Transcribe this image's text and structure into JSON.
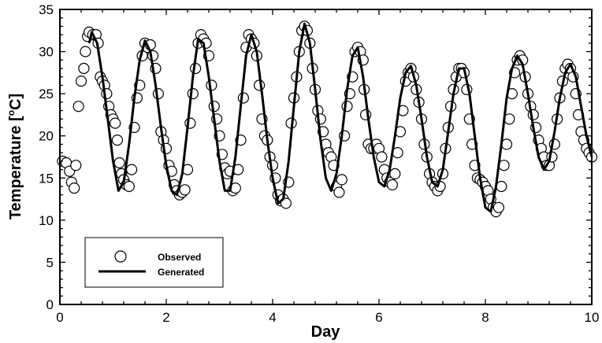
{
  "chart_data": {
    "type": "scatter",
    "xlabel": "Day",
    "ylabel": "Temperature [",
    "ylabel_unit_sup": "o",
    "ylabel_unit_tail": "C]",
    "xlim": [
      0,
      10
    ],
    "ylim": [
      0,
      35
    ],
    "xticks": [
      0,
      2,
      4,
      6,
      8,
      10
    ],
    "yticks": [
      0,
      5,
      10,
      15,
      20,
      25,
      30,
      35
    ],
    "xtick_labels": [
      "0",
      "2",
      "4",
      "6",
      "8",
      "10"
    ],
    "ytick_labels": [
      "0",
      "5",
      "10",
      "15",
      "20",
      "25",
      "30",
      "35"
    ],
    "grid": false,
    "legend_position": "bottom-left",
    "series": [
      {
        "name": "Observed",
        "marker": "open-circle",
        "points": [
          [
            0.05,
            17.0
          ],
          [
            0.12,
            16.8
          ],
          [
            0.18,
            15.8
          ],
          [
            0.22,
            14.5
          ],
          [
            0.27,
            13.8
          ],
          [
            0.3,
            16.5
          ],
          [
            0.35,
            23.5
          ],
          [
            0.4,
            26.5
          ],
          [
            0.45,
            28
          ],
          [
            0.48,
            30
          ],
          [
            0.52,
            31.8
          ],
          [
            0.55,
            32.3
          ],
          [
            0.62,
            32.0
          ],
          [
            0.68,
            32.0
          ],
          [
            0.72,
            31.0
          ],
          [
            0.76,
            27.0
          ],
          [
            0.8,
            26.5
          ],
          [
            0.84,
            26.0
          ],
          [
            0.88,
            25.0
          ],
          [
            0.92,
            23.5
          ],
          [
            0.96,
            22.5
          ],
          [
            1.0,
            22.0
          ],
          [
            1.04,
            21.5
          ],
          [
            1.08,
            19.5
          ],
          [
            1.12,
            16.8
          ],
          [
            1.16,
            15.5
          ],
          [
            1.2,
            14.8
          ],
          [
            1.25,
            14.2
          ],
          [
            1.3,
            14.0
          ],
          [
            1.35,
            16.0
          ],
          [
            1.4,
            21.0
          ],
          [
            1.45,
            24.5
          ],
          [
            1.5,
            26.0
          ],
          [
            1.55,
            29.5
          ],
          [
            1.6,
            31.0
          ],
          [
            1.65,
            30.5
          ],
          [
            1.7,
            30.8
          ],
          [
            1.75,
            29.5
          ],
          [
            1.8,
            28.0
          ],
          [
            1.85,
            25.0
          ],
          [
            1.9,
            20.5
          ],
          [
            1.95,
            19.5
          ],
          [
            2.0,
            18.5
          ],
          [
            2.05,
            16.5
          ],
          [
            2.1,
            15.8
          ],
          [
            2.15,
            14.2
          ],
          [
            2.2,
            13.5
          ],
          [
            2.25,
            13.0
          ],
          [
            2.3,
            13.3
          ],
          [
            2.35,
            13.6
          ],
          [
            2.4,
            16.0
          ],
          [
            2.45,
            21.5
          ],
          [
            2.5,
            25.0
          ],
          [
            2.55,
            28.0
          ],
          [
            2.6,
            31.0
          ],
          [
            2.65,
            32.0
          ],
          [
            2.7,
            31.5
          ],
          [
            2.75,
            31.0
          ],
          [
            2.8,
            29.5
          ],
          [
            2.85,
            26.0
          ],
          [
            2.9,
            23.5
          ],
          [
            2.95,
            22.0
          ],
          [
            3.0,
            20.0
          ],
          [
            3.05,
            17.8
          ],
          [
            3.1,
            16.2
          ],
          [
            3.15,
            15.5
          ],
          [
            3.2,
            15.8
          ],
          [
            3.25,
            13.5
          ],
          [
            3.3,
            13.8
          ],
          [
            3.35,
            16.0
          ],
          [
            3.4,
            19.5
          ],
          [
            3.45,
            24.5
          ],
          [
            3.5,
            30.5
          ],
          [
            3.55,
            32.0
          ],
          [
            3.6,
            31.5
          ],
          [
            3.65,
            31.0
          ],
          [
            3.7,
            29.5
          ],
          [
            3.75,
            26.0
          ],
          [
            3.8,
            22.0
          ],
          [
            3.85,
            20.0
          ],
          [
            3.9,
            19.5
          ],
          [
            3.95,
            17.5
          ],
          [
            4.0,
            16.5
          ],
          [
            4.05,
            15.0
          ],
          [
            4.1,
            13.0
          ],
          [
            4.15,
            12.3
          ],
          [
            4.2,
            12.5
          ],
          [
            4.25,
            12.0
          ],
          [
            4.3,
            14.5
          ],
          [
            4.35,
            21.5
          ],
          [
            4.4,
            24.5
          ],
          [
            4.45,
            27.0
          ],
          [
            4.5,
            30.0
          ],
          [
            4.55,
            32.5
          ],
          [
            4.6,
            33.0
          ],
          [
            4.65,
            32.5
          ],
          [
            4.7,
            31.0
          ],
          [
            4.75,
            28.0
          ],
          [
            4.8,
            25.5
          ],
          [
            4.85,
            23.0
          ],
          [
            4.9,
            22.0
          ],
          [
            4.95,
            20.5
          ],
          [
            5.0,
            19.0
          ],
          [
            5.05,
            18.0
          ],
          [
            5.1,
            17.5
          ],
          [
            5.15,
            16.5
          ],
          [
            5.2,
            14.0
          ],
          [
            5.25,
            13.3
          ],
          [
            5.3,
            14.8
          ],
          [
            5.35,
            20.0
          ],
          [
            5.4,
            23.5
          ],
          [
            5.45,
            25.0
          ],
          [
            5.5,
            27.0
          ],
          [
            5.55,
            30.0
          ],
          [
            5.6,
            30.5
          ],
          [
            5.65,
            30.0
          ],
          [
            5.7,
            29.0
          ],
          [
            5.72,
            25.5
          ],
          [
            5.75,
            22.5
          ],
          [
            5.8,
            19.0
          ],
          [
            5.85,
            18.5
          ],
          [
            5.9,
            18.5
          ],
          [
            5.95,
            19.0
          ],
          [
            6.0,
            18.5
          ],
          [
            6.05,
            17.5
          ],
          [
            6.1,
            16.0
          ],
          [
            6.15,
            15.0
          ],
          [
            6.2,
            14.5
          ],
          [
            6.25,
            14.2
          ],
          [
            6.3,
            15.5
          ],
          [
            6.35,
            18.0
          ],
          [
            6.4,
            20.5
          ],
          [
            6.45,
            23.0
          ],
          [
            6.5,
            26.5
          ],
          [
            6.55,
            27.5
          ],
          [
            6.6,
            28.0
          ],
          [
            6.65,
            27.0
          ],
          [
            6.7,
            25.5
          ],
          [
            6.75,
            24.0
          ],
          [
            6.8,
            22.0
          ],
          [
            6.85,
            19.0
          ],
          [
            6.9,
            17.5
          ],
          [
            6.95,
            15.5
          ],
          [
            7.0,
            14.5
          ],
          [
            7.05,
            14.0
          ],
          [
            7.1,
            13.5
          ],
          [
            7.15,
            14.0
          ],
          [
            7.2,
            15.5
          ],
          [
            7.25,
            18.5
          ],
          [
            7.3,
            21.0
          ],
          [
            7.35,
            23.5
          ],
          [
            7.4,
            25.5
          ],
          [
            7.45,
            27.0
          ],
          [
            7.5,
            28.0
          ],
          [
            7.55,
            28.0
          ],
          [
            7.6,
            27.5
          ],
          [
            7.65,
            25.5
          ],
          [
            7.7,
            22.0
          ],
          [
            7.75,
            19.0
          ],
          [
            7.8,
            16.5
          ],
          [
            7.85,
            15.0
          ],
          [
            7.9,
            14.8
          ],
          [
            7.95,
            14.5
          ],
          [
            8.0,
            14.0
          ],
          [
            8.05,
            13.5
          ],
          [
            8.1,
            12.5
          ],
          [
            8.15,
            11.5
          ],
          [
            8.2,
            11.0
          ],
          [
            8.25,
            11.5
          ],
          [
            8.3,
            14.0
          ],
          [
            8.35,
            16.5
          ],
          [
            8.4,
            19.0
          ],
          [
            8.45,
            22.0
          ],
          [
            8.5,
            25.0
          ],
          [
            8.55,
            27.5
          ],
          [
            8.6,
            29.0
          ],
          [
            8.65,
            29.5
          ],
          [
            8.7,
            29.0
          ],
          [
            8.75,
            27.0
          ],
          [
            8.8,
            25.0
          ],
          [
            8.85,
            23.5
          ],
          [
            8.9,
            22.5
          ],
          [
            8.95,
            21.0
          ],
          [
            9.0,
            19.5
          ],
          [
            9.05,
            18.5
          ],
          [
            9.1,
            17.5
          ],
          [
            9.15,
            16.5
          ],
          [
            9.2,
            16.5
          ],
          [
            9.25,
            17.5
          ],
          [
            9.3,
            19.0
          ],
          [
            9.35,
            22.0
          ],
          [
            9.4,
            24.5
          ],
          [
            9.45,
            26.5
          ],
          [
            9.5,
            28.0
          ],
          [
            9.55,
            28.5
          ],
          [
            9.6,
            28.0
          ],
          [
            9.65,
            27.0
          ],
          [
            9.7,
            25.0
          ],
          [
            9.75,
            22.5
          ],
          [
            9.8,
            20.5
          ],
          [
            9.85,
            19.5
          ],
          [
            9.9,
            18.5
          ],
          [
            9.95,
            18.0
          ],
          [
            10.0,
            17.5
          ]
        ]
      },
      {
        "name": "Generated",
        "line": "solid-thick",
        "points": [
          [
            0.55,
            31.0
          ],
          [
            0.6,
            32.3
          ],
          [
            0.7,
            31.0
          ],
          [
            0.8,
            27.0
          ],
          [
            0.9,
            22.0
          ],
          [
            1.0,
            17.0
          ],
          [
            1.1,
            13.5
          ],
          [
            1.2,
            14.5
          ],
          [
            1.3,
            19.0
          ],
          [
            1.4,
            24.5
          ],
          [
            1.5,
            29.0
          ],
          [
            1.6,
            31.3
          ],
          [
            1.7,
            30.0
          ],
          [
            1.8,
            26.0
          ],
          [
            1.9,
            21.0
          ],
          [
            2.0,
            16.5
          ],
          [
            2.1,
            13.5
          ],
          [
            2.2,
            13.0
          ],
          [
            2.3,
            15.5
          ],
          [
            2.4,
            21.0
          ],
          [
            2.5,
            27.0
          ],
          [
            2.6,
            31.5
          ],
          [
            2.7,
            31.0
          ],
          [
            2.8,
            27.0
          ],
          [
            2.9,
            22.0
          ],
          [
            3.0,
            17.0
          ],
          [
            3.1,
            13.5
          ],
          [
            3.2,
            13.5
          ],
          [
            3.3,
            17.5
          ],
          [
            3.4,
            23.5
          ],
          [
            3.5,
            29.5
          ],
          [
            3.6,
            32.0
          ],
          [
            3.7,
            30.0
          ],
          [
            3.8,
            25.0
          ],
          [
            3.9,
            19.5
          ],
          [
            4.0,
            15.0
          ],
          [
            4.1,
            12.0
          ],
          [
            4.2,
            12.5
          ],
          [
            4.3,
            17.0
          ],
          [
            4.4,
            23.5
          ],
          [
            4.5,
            30.0
          ],
          [
            4.6,
            33.3
          ],
          [
            4.7,
            31.0
          ],
          [
            4.8,
            25.5
          ],
          [
            4.9,
            19.5
          ],
          [
            5.0,
            15.0
          ],
          [
            5.1,
            13.5
          ],
          [
            5.2,
            15.5
          ],
          [
            5.3,
            20.0
          ],
          [
            5.4,
            25.5
          ],
          [
            5.5,
            29.5
          ],
          [
            5.6,
            30.5
          ],
          [
            5.7,
            27.0
          ],
          [
            5.8,
            22.0
          ],
          [
            5.9,
            17.5
          ],
          [
            6.0,
            14.5
          ],
          [
            6.1,
            14.0
          ],
          [
            6.2,
            16.0
          ],
          [
            6.3,
            20.0
          ],
          [
            6.4,
            24.5
          ],
          [
            6.5,
            27.5
          ],
          [
            6.6,
            28.3
          ],
          [
            6.7,
            26.0
          ],
          [
            6.8,
            22.0
          ],
          [
            6.9,
            17.5
          ],
          [
            7.0,
            14.5
          ],
          [
            7.1,
            14.0
          ],
          [
            7.2,
            16.0
          ],
          [
            7.3,
            20.5
          ],
          [
            7.4,
            25.0
          ],
          [
            7.5,
            28.0
          ],
          [
            7.6,
            28.0
          ],
          [
            7.7,
            25.0
          ],
          [
            7.8,
            20.0
          ],
          [
            7.9,
            15.0
          ],
          [
            8.0,
            11.5
          ],
          [
            8.1,
            11.0
          ],
          [
            8.2,
            14.0
          ],
          [
            8.3,
            19.0
          ],
          [
            8.4,
            24.5
          ],
          [
            8.5,
            28.0
          ],
          [
            8.6,
            29.5
          ],
          [
            8.7,
            28.5
          ],
          [
            8.8,
            25.0
          ],
          [
            8.9,
            21.0
          ],
          [
            9.0,
            17.5
          ],
          [
            9.1,
            16.0
          ],
          [
            9.2,
            17.0
          ],
          [
            9.3,
            20.5
          ],
          [
            9.4,
            24.5
          ],
          [
            9.5,
            27.5
          ],
          [
            9.6,
            28.5
          ],
          [
            9.7,
            27.0
          ],
          [
            9.8,
            23.5
          ],
          [
            9.9,
            20.0
          ],
          [
            10.0,
            17.5
          ]
        ]
      }
    ]
  }
}
